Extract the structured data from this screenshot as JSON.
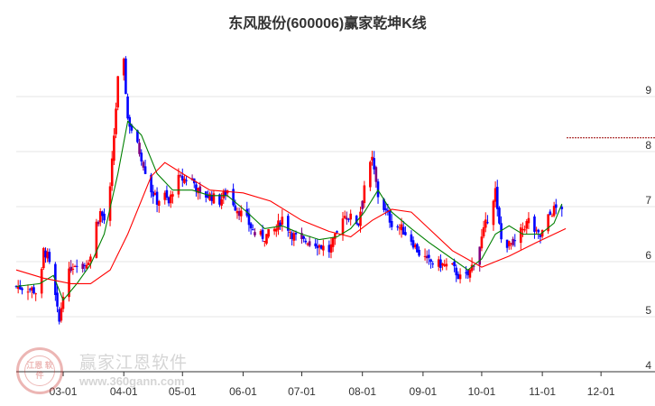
{
  "title": "东风股份(600006)赢家乾坤K线",
  "watermark": {
    "name": "赢家江恩软件",
    "url": "www.360gann.com",
    "seal_text": "江恩 软件"
  },
  "colors": {
    "up": "#ff0000",
    "down": "#0000ff",
    "mid": "#800080",
    "ma_short": "#008000",
    "ma_long": "#ff0000",
    "grid": "#e6e6e6",
    "axis": "#333333"
  },
  "chart_data": {
    "type": "candlestick",
    "title": "东风股份(600006)赢家乾坤K线",
    "xlabel": "",
    "ylabel": "",
    "ylim": [
      4,
      10
    ],
    "y_ticks": [
      "4",
      "5",
      "6",
      "7",
      "8",
      "9"
    ],
    "x_ticks": [
      "03-01",
      "04-01",
      "05-01",
      "06-01",
      "07-01",
      "08-01",
      "09-01",
      "10-01",
      "11-01",
      "12-01"
    ],
    "grid": true,
    "legend": "none",
    "target_level": 8.25,
    "candle_colors": [
      "up",
      "down",
      "mid"
    ],
    "close_series": [
      {
        "x": "02-06",
        "y": 5.55
      },
      {
        "x": "02-14",
        "y": 5.5
      },
      {
        "x": "02-18",
        "y": 5.4
      },
      {
        "x": "02-20",
        "y": 6.2
      },
      {
        "x": "02-22",
        "y": 6.1
      },
      {
        "x": "02-25",
        "y": 5.6
      },
      {
        "x": "02-27",
        "y": 5.1
      },
      {
        "x": "02-28",
        "y": 4.9
      },
      {
        "x": "03-01",
        "y": 5.45
      },
      {
        "x": "03-05",
        "y": 5.9
      },
      {
        "x": "03-08",
        "y": 6.0
      },
      {
        "x": "03-12",
        "y": 5.95
      },
      {
        "x": "03-15",
        "y": 6.1
      },
      {
        "x": "03-18",
        "y": 6.7
      },
      {
        "x": "03-20",
        "y": 6.9
      },
      {
        "x": "03-22",
        "y": 6.75
      },
      {
        "x": "03-25",
        "y": 7.3
      },
      {
        "x": "03-27",
        "y": 8.3
      },
      {
        "x": "03-29",
        "y": 9.3
      },
      {
        "x": "04-01",
        "y": 9.6
      },
      {
        "x": "04-03",
        "y": 8.6
      },
      {
        "x": "04-08",
        "y": 8.1
      },
      {
        "x": "04-10",
        "y": 7.9
      },
      {
        "x": "04-15",
        "y": 7.3
      },
      {
        "x": "04-18",
        "y": 7.1
      },
      {
        "x": "04-22",
        "y": 7.2
      },
      {
        "x": "04-24",
        "y": 7.05
      },
      {
        "x": "04-26",
        "y": 7.3
      },
      {
        "x": "04-29",
        "y": 7.5
      },
      {
        "x": "05-06",
        "y": 7.5
      },
      {
        "x": "05-10",
        "y": 7.2
      },
      {
        "x": "05-15",
        "y": 7.2
      },
      {
        "x": "05-20",
        "y": 7.1
      },
      {
        "x": "05-24",
        "y": 7.3
      },
      {
        "x": "05-28",
        "y": 7.0
      },
      {
        "x": "06-03",
        "y": 6.75
      },
      {
        "x": "06-07",
        "y": 6.5
      },
      {
        "x": "06-12",
        "y": 6.45
      },
      {
        "x": "06-18",
        "y": 6.6
      },
      {
        "x": "06-21",
        "y": 6.8
      },
      {
        "x": "06-26",
        "y": 6.5
      },
      {
        "x": "07-01",
        "y": 6.35
      },
      {
        "x": "07-05",
        "y": 6.4
      },
      {
        "x": "07-10",
        "y": 6.3
      },
      {
        "x": "07-15",
        "y": 6.2
      },
      {
        "x": "07-19",
        "y": 6.5
      },
      {
        "x": "07-22",
        "y": 6.85
      },
      {
        "x": "07-26",
        "y": 6.8
      },
      {
        "x": "07-30",
        "y": 6.7
      },
      {
        "x": "08-02",
        "y": 7.4
      },
      {
        "x": "08-06",
        "y": 7.85
      },
      {
        "x": "08-09",
        "y": 7.2
      },
      {
        "x": "08-13",
        "y": 6.9
      },
      {
        "x": "08-16",
        "y": 6.7
      },
      {
        "x": "08-21",
        "y": 6.6
      },
      {
        "x": "08-26",
        "y": 6.4
      },
      {
        "x": "08-30",
        "y": 6.15
      },
      {
        "x": "09-04",
        "y": 6.0
      },
      {
        "x": "09-10",
        "y": 5.95
      },
      {
        "x": "09-16",
        "y": 5.9
      },
      {
        "x": "09-20",
        "y": 5.7
      },
      {
        "x": "09-24",
        "y": 5.75
      },
      {
        "x": "09-27",
        "y": 6.0
      },
      {
        "x": "09-30",
        "y": 6.3
      },
      {
        "x": "10-08",
        "y": 7.3
      },
      {
        "x": "10-09",
        "y": 6.9
      },
      {
        "x": "10-11",
        "y": 6.4
      },
      {
        "x": "10-15",
        "y": 6.3
      },
      {
        "x": "10-18",
        "y": 6.35
      },
      {
        "x": "10-22",
        "y": 6.6
      },
      {
        "x": "10-25",
        "y": 6.75
      },
      {
        "x": "10-29",
        "y": 6.5
      },
      {
        "x": "10-31",
        "y": 6.45
      },
      {
        "x": "11-04",
        "y": 6.8
      },
      {
        "x": "11-07",
        "y": 6.95
      },
      {
        "x": "11-11",
        "y": 7.0
      }
    ],
    "series": [
      {
        "name": "",
        "color": "#008000",
        "points": [
          {
            "x": "02-06",
            "y": 5.55
          },
          {
            "x": "02-18",
            "y": 5.6
          },
          {
            "x": "02-25",
            "y": 5.75
          },
          {
            "x": "03-01",
            "y": 5.3
          },
          {
            "x": "03-08",
            "y": 5.6
          },
          {
            "x": "03-15",
            "y": 5.95
          },
          {
            "x": "03-22",
            "y": 6.5
          },
          {
            "x": "03-29",
            "y": 7.6
          },
          {
            "x": "04-03",
            "y": 8.55
          },
          {
            "x": "04-10",
            "y": 8.3
          },
          {
            "x": "04-18",
            "y": 7.6
          },
          {
            "x": "04-26",
            "y": 7.3
          },
          {
            "x": "05-06",
            "y": 7.3
          },
          {
            "x": "05-15",
            "y": 7.2
          },
          {
            "x": "05-24",
            "y": 7.2
          },
          {
            "x": "06-03",
            "y": 6.9
          },
          {
            "x": "06-12",
            "y": 6.6
          },
          {
            "x": "06-21",
            "y": 6.65
          },
          {
            "x": "07-01",
            "y": 6.5
          },
          {
            "x": "07-10",
            "y": 6.4
          },
          {
            "x": "07-19",
            "y": 6.45
          },
          {
            "x": "07-26",
            "y": 6.6
          },
          {
            "x": "08-02",
            "y": 6.9
          },
          {
            "x": "08-09",
            "y": 7.3
          },
          {
            "x": "08-16",
            "y": 6.9
          },
          {
            "x": "08-26",
            "y": 6.6
          },
          {
            "x": "09-04",
            "y": 6.35
          },
          {
            "x": "09-16",
            "y": 6.05
          },
          {
            "x": "09-24",
            "y": 5.85
          },
          {
            "x": "10-01",
            "y": 6.05
          },
          {
            "x": "10-08",
            "y": 6.5
          },
          {
            "x": "10-15",
            "y": 6.65
          },
          {
            "x": "10-22",
            "y": 6.5
          },
          {
            "x": "10-31",
            "y": 6.5
          },
          {
            "x": "11-07",
            "y": 6.7
          },
          {
            "x": "11-11",
            "y": 7.05
          }
        ]
      },
      {
        "name": "",
        "color": "#ff0000",
        "points": [
          {
            "x": "02-06",
            "y": 5.85
          },
          {
            "x": "02-20",
            "y": 5.7
          },
          {
            "x": "03-05",
            "y": 5.6
          },
          {
            "x": "03-15",
            "y": 5.6
          },
          {
            "x": "03-25",
            "y": 5.85
          },
          {
            "x": "04-03",
            "y": 6.5
          },
          {
            "x": "04-15",
            "y": 7.55
          },
          {
            "x": "04-22",
            "y": 7.8
          },
          {
            "x": "05-01",
            "y": 7.6
          },
          {
            "x": "05-15",
            "y": 7.3
          },
          {
            "x": "06-01",
            "y": 7.25
          },
          {
            "x": "06-15",
            "y": 7.1
          },
          {
            "x": "07-01",
            "y": 6.75
          },
          {
            "x": "07-15",
            "y": 6.55
          },
          {
            "x": "07-26",
            "y": 6.45
          },
          {
            "x": "08-06",
            "y": 6.75
          },
          {
            "x": "08-16",
            "y": 6.95
          },
          {
            "x": "08-26",
            "y": 6.9
          },
          {
            "x": "09-04",
            "y": 6.6
          },
          {
            "x": "09-16",
            "y": 6.2
          },
          {
            "x": "10-01",
            "y": 5.9
          },
          {
            "x": "10-15",
            "y": 6.1
          },
          {
            "x": "10-29",
            "y": 6.35
          },
          {
            "x": "11-07",
            "y": 6.5
          },
          {
            "x": "11-13",
            "y": 6.6
          }
        ]
      }
    ]
  }
}
